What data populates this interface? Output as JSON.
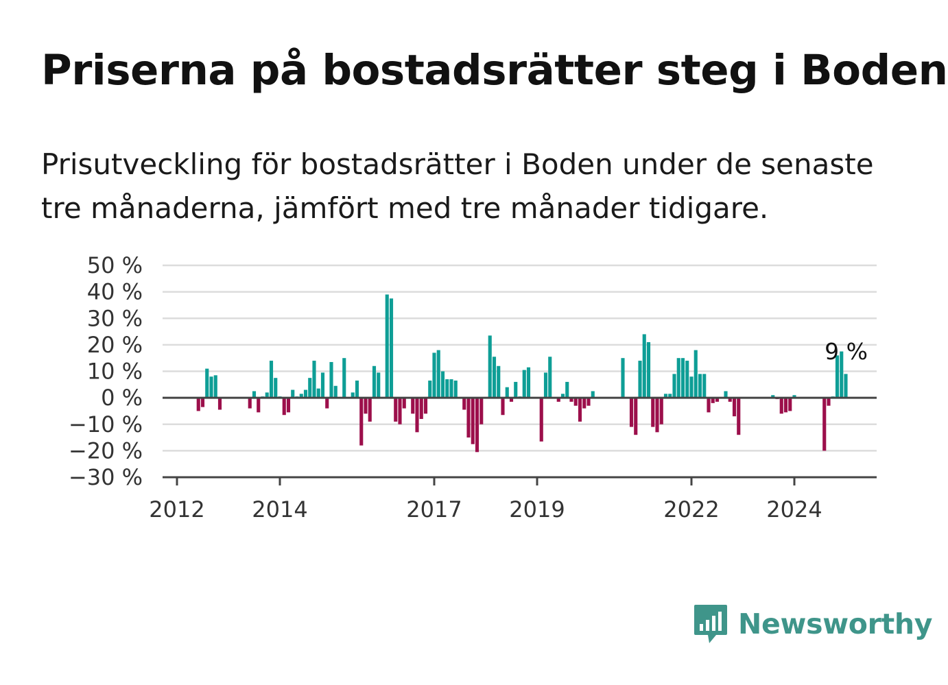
{
  "title": "Priserna på bostadsrätter steg i Boden",
  "subtitle": "Prisutveckling för bostadsrätter i Boden under de senaste tre månaderna, jämfört med tre månader tidigare.",
  "brand": {
    "name": "Newsworthy",
    "color": "#3f958a",
    "icon": "bar-chart-logo-icon"
  },
  "colors": {
    "positive": "#0e9e96",
    "negative": "#9c0f4b",
    "grid": "#dcdcdc",
    "axis": "#444444"
  },
  "chart_data": {
    "type": "bar",
    "title": "Priserna på bostadsrätter steg i Boden",
    "xlabel": "",
    "ylabel": "",
    "ylim": [
      -30,
      50
    ],
    "yticks": [
      50,
      40,
      30,
      20,
      10,
      0,
      -10,
      -20,
      -30
    ],
    "ytick_labels": [
      "50 %",
      "40 %",
      "30 %",
      "20 %",
      "10 %",
      "0 %",
      "−10 %",
      "−20 %",
      "−30 %"
    ],
    "xticks": [
      2012,
      2014,
      2017,
      2019,
      2022,
      2024
    ],
    "xtick_labels": [
      "2012",
      "2014",
      "2017",
      "2019",
      "2022",
      "2024"
    ],
    "xlim": [
      2012.0,
      2025.6
    ],
    "grid": true,
    "unit": "%",
    "annotation": "9 %",
    "x": [
      2012.0833,
      2012.1667,
      2012.25,
      2012.3333,
      2012.4167,
      2012.5,
      2012.5833,
      2012.6667,
      2012.75,
      2012.8333,
      2012.9167,
      2013.0,
      2013.0833,
      2013.1667,
      2013.25,
      2013.3333,
      2013.4167,
      2013.5,
      2013.5833,
      2013.6667,
      2013.75,
      2013.8333,
      2013.9167,
      2014.0,
      2014.0833,
      2014.1667,
      2014.25,
      2014.3333,
      2014.4167,
      2014.5,
      2014.5833,
      2014.6667,
      2014.75,
      2014.8333,
      2014.9167,
      2015.0,
      2015.0833,
      2015.1667,
      2015.25,
      2015.3333,
      2015.4167,
      2015.5,
      2015.5833,
      2015.6667,
      2015.75,
      2015.8333,
      2015.9167,
      2016.0,
      2016.0833,
      2016.1667,
      2016.25,
      2016.3333,
      2016.4167,
      2016.5,
      2016.5833,
      2016.6667,
      2016.75,
      2016.8333,
      2016.9167,
      2017.0,
      2017.0833,
      2017.1667,
      2017.25,
      2017.3333,
      2017.4167,
      2017.5,
      2017.5833,
      2017.6667,
      2017.75,
      2017.8333,
      2017.9167,
      2018.0,
      2018.0833,
      2018.1667,
      2018.25,
      2018.3333,
      2018.4167,
      2018.5,
      2018.5833,
      2018.6667,
      2018.75,
      2018.8333,
      2018.9167,
      2019.0,
      2019.0833,
      2019.1667,
      2019.25,
      2019.3333,
      2019.4167,
      2019.5,
      2019.5833,
      2019.6667,
      2019.75,
      2019.8333,
      2019.9167,
      2020.0,
      2020.0833,
      2020.1667,
      2020.25,
      2020.3333,
      2020.4167,
      2020.5,
      2020.5833,
      2020.6667,
      2020.75,
      2020.8333,
      2020.9167,
      2021.0,
      2021.0833,
      2021.1667,
      2021.25,
      2021.3333,
      2021.4167,
      2021.5,
      2021.5833,
      2021.6667,
      2021.75,
      2021.8333,
      2021.9167,
      2022.0,
      2022.0833,
      2022.1667,
      2022.25,
      2022.3333,
      2022.4167,
      2022.5,
      2022.5833,
      2022.6667,
      2022.75,
      2022.8333,
      2022.9167,
      2023.0,
      2023.0833,
      2023.1667,
      2023.25,
      2023.3333,
      2023.4167,
      2023.5,
      2023.5833,
      2023.6667,
      2023.75,
      2023.8333,
      2023.9167,
      2024.0,
      2024.0833,
      2024.1667,
      2024.25,
      2024.3333,
      2024.4167,
      2024.5,
      2024.5833,
      2024.6667,
      2024.75,
      2024.8333,
      2024.9167,
      2025.0
    ],
    "values": [
      null,
      null,
      null,
      null,
      -5,
      -3.5,
      11,
      8,
      8.5,
      -4.5,
      null,
      null,
      null,
      null,
      null,
      null,
      -4,
      2.5,
      -5.5,
      0.5,
      2,
      14,
      7.5,
      0.5,
      -6.5,
      -5.5,
      3,
      0.5,
      1.5,
      3,
      7.5,
      14,
      3.5,
      9.5,
      -4,
      13.5,
      4.5,
      null,
      15,
      null,
      2,
      6.5,
      -18,
      -6,
      -9,
      12,
      9.5,
      null,
      39,
      37.5,
      -9,
      -10,
      -4,
      null,
      -6,
      -13,
      -8,
      -6,
      6.5,
      17,
      18,
      10,
      7,
      7,
      6.5,
      null,
      -4.5,
      -15,
      -17.5,
      -20.5,
      -10,
      null,
      23.5,
      15.5,
      12,
      -6.5,
      4,
      -1.5,
      6,
      0.5,
      10.5,
      11.5,
      null,
      null,
      -16.5,
      9.5,
      15.5,
      null,
      -1.5,
      1.5,
      6,
      -1.5,
      -3,
      -9,
      -4,
      -3,
      2.5,
      null,
      null,
      null,
      null,
      null,
      null,
      15,
      null,
      -11,
      -14,
      14,
      24,
      21,
      -11,
      -13,
      -10,
      1.5,
      1.5,
      9,
      15,
      15,
      14,
      8,
      18,
      9,
      9,
      -5.5,
      -2,
      -1.5,
      null,
      2.5,
      -1.5,
      -7,
      -14,
      null,
      null,
      null,
      null,
      null,
      null,
      null,
      1,
      -0.5,
      -6,
      -5.5,
      -5,
      1,
      null,
      null,
      null,
      null,
      null,
      null,
      -20,
      -3,
      0.5,
      16,
      17.5,
      9
    ]
  }
}
